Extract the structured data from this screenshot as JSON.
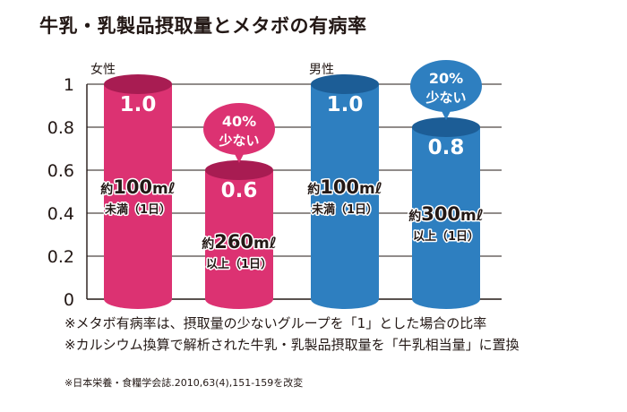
{
  "title": "牛乳・乳製品摂取量とメタボの有病率",
  "colors": {
    "female": "#dc3272",
    "female_dark": "#a81c52",
    "male": "#2e7fc0",
    "male_dark": "#1c5d96",
    "grid": "#231815"
  },
  "chart_data": {
    "type": "bar",
    "ylim": [
      0,
      1
    ],
    "y_ticks": [
      "0",
      "0.2",
      "0.4",
      "0.6",
      "0.8",
      "1"
    ],
    "grid": true,
    "groups": [
      {
        "name": "女性",
        "bars": [
          {
            "value": 1.0,
            "value_label": "1.0",
            "amount_prefix": "約",
            "amount_number": "100",
            "amount_unit": "mℓ",
            "amount_condition": "未満（1日）"
          },
          {
            "value": 0.6,
            "value_label": "0.6",
            "amount_prefix": "約",
            "amount_number": "260",
            "amount_unit": "mℓ",
            "amount_condition": "以上（1日）",
            "callout": [
              "40%",
              "少ない"
            ]
          }
        ]
      },
      {
        "name": "男性",
        "bars": [
          {
            "value": 1.0,
            "value_label": "1.0",
            "amount_prefix": "約",
            "amount_number": "100",
            "amount_unit": "mℓ",
            "amount_condition": "未満（1日）"
          },
          {
            "value": 0.8,
            "value_label": "0.8",
            "amount_prefix": "約",
            "amount_number": "300",
            "amount_unit": "mℓ",
            "amount_condition": "以上（1日）",
            "callout": [
              "20%",
              "少ない"
            ]
          }
        ]
      }
    ]
  },
  "notes": [
    "※メタボ有病率は、摂取量の少ないグループを「1」とした場合の比率",
    "※カルシウム換算で解析された牛乳・乳製品摂取量を「牛乳相当量」に置換"
  ],
  "source": "※日本栄養・食糧学会誌.2010,63(4),151-159を改変"
}
